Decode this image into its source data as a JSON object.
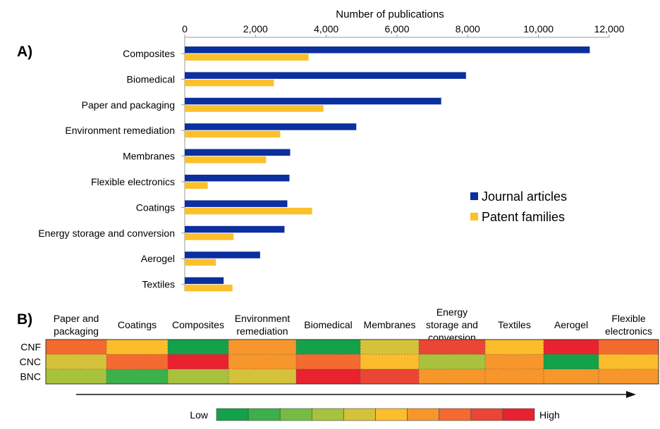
{
  "panel_a_label": "A)",
  "panel_b_label": "B)",
  "chart_data": [
    {
      "type": "bar",
      "orientation": "horizontal",
      "xlabel": "Number of publications",
      "xlim": [
        0,
        12000
      ],
      "x_ticks": [
        "0",
        "2,000",
        "4,000",
        "6,000",
        "8,000",
        "10,000",
        "12,000"
      ],
      "x_tick_values": [
        0,
        2000,
        4000,
        6000,
        8000,
        10000,
        12000
      ],
      "categories": [
        "Composites",
        "Biomedical",
        "Paper and packaging",
        "Environment remediation",
        "Membranes",
        "Flexible electronics",
        "Coatings",
        "Energy storage and conversion",
        "Aerogel",
        "Textiles"
      ],
      "series": [
        {
          "name": "Journal articles",
          "color": "#0b2f9e",
          "values": [
            11450,
            7950,
            7250,
            4850,
            2980,
            2960,
            2900,
            2820,
            2130,
            1100
          ]
        },
        {
          "name": "Patent families",
          "color": "#fcc02b",
          "values": [
            3500,
            2520,
            3920,
            2700,
            2300,
            650,
            3600,
            1380,
            880,
            1350
          ]
        }
      ],
      "legend_position": "right"
    },
    {
      "type": "heatmap",
      "columns": [
        [
          "Paper and",
          "packaging"
        ],
        [
          "Coatings"
        ],
        [
          "Composites"
        ],
        [
          "Environment",
          "remediation"
        ],
        [
          "Biomedical"
        ],
        [
          "Membranes"
        ],
        [
          "Energy",
          "storage and",
          "conversion"
        ],
        [
          "Textiles"
        ],
        [
          "Aerogel"
        ],
        [
          "Flexible",
          "electronics"
        ]
      ],
      "rows": [
        "CNF",
        "CNC",
        "BNC"
      ],
      "levels": [
        [
          7,
          5,
          0,
          6,
          0,
          4,
          8,
          5,
          10,
          7
        ],
        [
          4,
          7,
          10,
          6,
          7,
          5,
          3,
          6,
          0,
          5
        ],
        [
          3,
          1,
          3,
          4,
          10,
          8,
          6,
          6,
          6,
          6
        ]
      ],
      "scale_low_label": "Low",
      "scale_high_label": "High",
      "scale_colors": [
        "#13a24a",
        "#3cb04a",
        "#76bc43",
        "#a8c23d",
        "#d4c33a",
        "#fbbd2b",
        "#f7962b",
        "#f46a30",
        "#ea4535",
        "#e8222f"
      ]
    }
  ]
}
